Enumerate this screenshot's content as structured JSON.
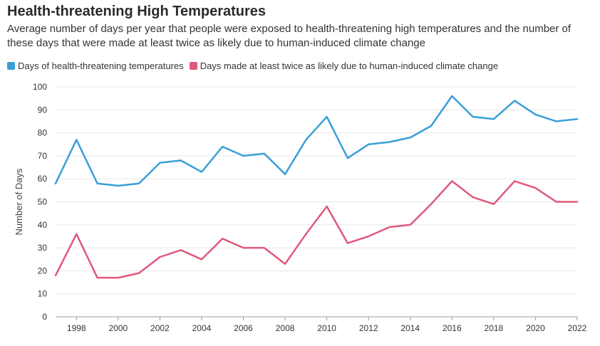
{
  "header": {
    "title": "Health-threatening High Temperatures",
    "subtitle": "Average number of days per year that people were exposed to health-threatening high temperatures and the number of these days that were made at least twice as likely due to human-induced climate change"
  },
  "chart_data": {
    "type": "line",
    "ylabel": "Number of Days",
    "xlabel": "",
    "ylim": [
      0,
      100
    ],
    "xlim": [
      1997,
      2022
    ],
    "y_ticks": [
      0,
      10,
      20,
      30,
      40,
      50,
      60,
      70,
      80,
      90,
      100
    ],
    "x_ticks": [
      1998,
      2000,
      2002,
      2004,
      2006,
      2008,
      2010,
      2012,
      2014,
      2016,
      2018,
      2020,
      2022
    ],
    "grid": true,
    "legend_position": "top-left",
    "x": [
      1997,
      1998,
      1999,
      2000,
      2001,
      2002,
      2003,
      2004,
      2005,
      2006,
      2007,
      2008,
      2009,
      2010,
      2011,
      2012,
      2013,
      2014,
      2015,
      2016,
      2017,
      2018,
      2019,
      2020,
      2021,
      2022
    ],
    "series": [
      {
        "name": "Days of health-threatening temperatures",
        "color": "#3a9fd8",
        "values": [
          58,
          77,
          58,
          57,
          58,
          67,
          68,
          63,
          74,
          70,
          71,
          62,
          77,
          87,
          69,
          75,
          76,
          78,
          83,
          96,
          87,
          86,
          94,
          88,
          85,
          86
        ]
      },
      {
        "name": "Days made at least twice as likely due to human-induced climate change",
        "color": "#e0587a",
        "values": [
          18,
          36,
          17,
          17,
          19,
          26,
          29,
          25,
          34,
          30,
          30,
          23,
          36,
          48,
          32,
          35,
          39,
          40,
          49,
          59,
          52,
          49,
          59,
          56,
          50,
          50
        ]
      }
    ]
  }
}
